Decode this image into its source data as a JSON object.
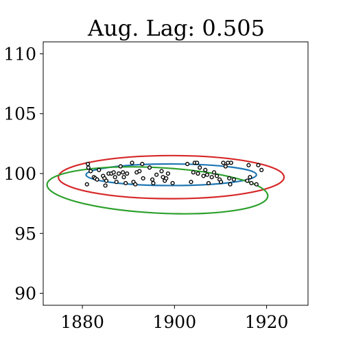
{
  "chart_data": {
    "type": "scatter",
    "title": "Aug. Lag: 0.505",
    "xlabel": "",
    "ylabel": "",
    "xlim": [
      1871.5,
      1929
    ],
    "ylim": [
      89,
      111
    ],
    "xticks": [
      1880,
      1900,
      1920
    ],
    "yticks": [
      90,
      95,
      100,
      105,
      110
    ],
    "xtick_labels": [
      "1880",
      "1900",
      "1920"
    ],
    "ytick_labels": [
      "90",
      "95",
      "100",
      "105",
      "110"
    ],
    "grid": false,
    "points": [
      {
        "x": 1881.2,
        "y": 100.8
      },
      {
        "x": 1881.3,
        "y": 100.5
      },
      {
        "x": 1881.8,
        "y": 100.2
      },
      {
        "x": 1881.0,
        "y": 99.1
      },
      {
        "x": 1882.5,
        "y": 99.7
      },
      {
        "x": 1882.8,
        "y": 99.6
      },
      {
        "x": 1883.2,
        "y": 99.5
      },
      {
        "x": 1883.6,
        "y": 100.3
      },
      {
        "x": 1884.5,
        "y": 99.8
      },
      {
        "x": 1884.8,
        "y": 99.6
      },
      {
        "x": 1885.2,
        "y": 99.4
      },
      {
        "x": 1885.0,
        "y": 99.0
      },
      {
        "x": 1885.7,
        "y": 100.0
      },
      {
        "x": 1886.3,
        "y": 100.0
      },
      {
        "x": 1886.8,
        "y": 100.1
      },
      {
        "x": 1887.1,
        "y": 99.7
      },
      {
        "x": 1887.4,
        "y": 99.3
      },
      {
        "x": 1887.9,
        "y": 100.0
      },
      {
        "x": 1888.3,
        "y": 100.6
      },
      {
        "x": 1888.8,
        "y": 100.1
      },
      {
        "x": 1889.0,
        "y": 99.7
      },
      {
        "x": 1889.4,
        "y": 99.2
      },
      {
        "x": 1889.7,
        "y": 100.0
      },
      {
        "x": 1890.8,
        "y": 100.9
      },
      {
        "x": 1891.1,
        "y": 99.3
      },
      {
        "x": 1891.5,
        "y": 99.1
      },
      {
        "x": 1891.8,
        "y": 100.1
      },
      {
        "x": 1892.4,
        "y": 100.2
      },
      {
        "x": 1893.0,
        "y": 100.8
      },
      {
        "x": 1893.2,
        "y": 99.6
      },
      {
        "x": 1894.6,
        "y": 100.5
      },
      {
        "x": 1895.2,
        "y": 99.5
      },
      {
        "x": 1895.4,
        "y": 99.2
      },
      {
        "x": 1896.1,
        "y": 99.9
      },
      {
        "x": 1897.2,
        "y": 100.2
      },
      {
        "x": 1897.5,
        "y": 99.7
      },
      {
        "x": 1897.9,
        "y": 99.4
      },
      {
        "x": 1898.2,
        "y": 99.6
      },
      {
        "x": 1898.6,
        "y": 100.0
      },
      {
        "x": 1899.6,
        "y": 99.2
      },
      {
        "x": 1902.8,
        "y": 100.8
      },
      {
        "x": 1903.6,
        "y": 99.3
      },
      {
        "x": 1904.1,
        "y": 100.1
      },
      {
        "x": 1904.4,
        "y": 100.9
      },
      {
        "x": 1904.9,
        "y": 100.9
      },
      {
        "x": 1905.1,
        "y": 100.0
      },
      {
        "x": 1905.5,
        "y": 100.5
      },
      {
        "x": 1906.3,
        "y": 99.8
      },
      {
        "x": 1906.7,
        "y": 100.3
      },
      {
        "x": 1907.1,
        "y": 99.9
      },
      {
        "x": 1907.4,
        "y": 99.2
      },
      {
        "x": 1908.1,
        "y": 99.7
      },
      {
        "x": 1908.6,
        "y": 100.1
      },
      {
        "x": 1909.2,
        "y": 99.8
      },
      {
        "x": 1909.8,
        "y": 99.5
      },
      {
        "x": 1910.1,
        "y": 99.3
      },
      {
        "x": 1910.6,
        "y": 100.9
      },
      {
        "x": 1911.1,
        "y": 100.6
      },
      {
        "x": 1911.6,
        "y": 100.9
      },
      {
        "x": 1911.9,
        "y": 99.6
      },
      {
        "x": 1912.1,
        "y": 99.1
      },
      {
        "x": 1912.3,
        "y": 100.9
      },
      {
        "x": 1912.9,
        "y": 99.5
      },
      {
        "x": 1915.8,
        "y": 99.4
      },
      {
        "x": 1916.1,
        "y": 100.7
      },
      {
        "x": 1916.4,
        "y": 99.7
      },
      {
        "x": 1916.7,
        "y": 99.2
      },
      {
        "x": 1917.8,
        "y": 99.1
      },
      {
        "x": 1918.2,
        "y": 100.7
      },
      {
        "x": 1918.9,
        "y": 100.3
      }
    ],
    "ellipses": [
      {
        "color": "#1f77b4",
        "cx": 1899.3,
        "cy": 99.9,
        "rx": 18.5,
        "ry": 0.9,
        "angle_deg": 0
      },
      {
        "color": "#d62728",
        "cx": 1899.3,
        "cy": 99.7,
        "rx": 24.5,
        "ry": 1.8,
        "angle_deg": 0
      },
      {
        "color": "#2ca02c",
        "cx": 1896.3,
        "cy": 98.6,
        "rx": 24.0,
        "ry": 1.9,
        "angle_deg": -3
      }
    ]
  }
}
